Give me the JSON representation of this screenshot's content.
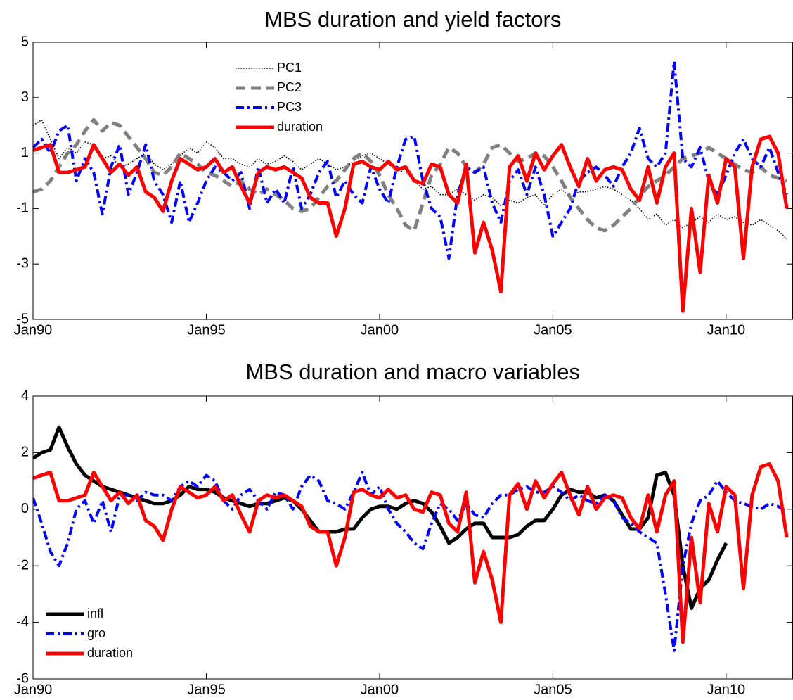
{
  "chart_data": [
    {
      "type": "line",
      "title": "MBS duration and yield factors",
      "legend": "upper left",
      "x": [
        1990,
        1990.25,
        1990.5,
        1990.75,
        1991,
        1991.25,
        1991.5,
        1991.75,
        1992,
        1992.25,
        1992.5,
        1992.75,
        1993,
        1993.25,
        1993.5,
        1993.75,
        1994,
        1994.25,
        1994.5,
        1994.75,
        1995,
        1995.25,
        1995.5,
        1995.75,
        1996,
        1996.25,
        1996.5,
        1996.75,
        1997,
        1997.25,
        1997.5,
        1997.75,
        1998,
        1998.25,
        1998.5,
        1998.75,
        1999,
        1999.25,
        1999.5,
        1999.75,
        2000,
        2000.25,
        2000.5,
        2000.75,
        2001,
        2001.25,
        2001.5,
        2001.75,
        2002,
        2002.25,
        2002.5,
        2002.75,
        2003,
        2003.25,
        2003.5,
        2003.75,
        2004,
        2004.25,
        2004.5,
        2004.75,
        2005,
        2005.25,
        2005.5,
        2005.75,
        2006,
        2006.25,
        2006.5,
        2006.75,
        2007,
        2007.25,
        2007.5,
        2007.75,
        2008,
        2008.25,
        2008.5,
        2008.75,
        2009,
        2009.25,
        2009.5,
        2009.75,
        2010,
        2010.25,
        2010.5,
        2010.75,
        2011,
        2011.25,
        2011.5,
        2011.75
      ],
      "xlim": [
        1990,
        2011.92
      ],
      "xticks": [
        {
          "value": 1990,
          "label": "Jan90"
        },
        {
          "value": 1995,
          "label": "Jan95"
        },
        {
          "value": 2000,
          "label": "Jan00"
        },
        {
          "value": 2005,
          "label": "Jan05"
        },
        {
          "value": 2010,
          "label": "Jan10"
        }
      ],
      "ylim": [
        -5,
        5
      ],
      "yticks": [
        -5,
        -3,
        -1,
        1,
        3,
        5
      ],
      "series": [
        {
          "name": "PC1",
          "color": "#000000",
          "linestyle": "dotted",
          "values": [
            2.0,
            2.2,
            1.5,
            0.8,
            1.2,
            1.0,
            1.4,
            1.3,
            0.8,
            0.9,
            0.5,
            0.6,
            0.8,
            1.0,
            0.6,
            0.4,
            0.6,
            0.9,
            1.2,
            1.0,
            1.4,
            1.2,
            0.8,
            0.8,
            0.6,
            0.5,
            0.8,
            0.6,
            0.7,
            0.9,
            0.7,
            0.4,
            0.6,
            0.8,
            0.6,
            0.4,
            0.5,
            0.7,
            0.9,
            1.0,
            0.8,
            0.6,
            0.4,
            0.3,
            0.0,
            -0.3,
            -0.2,
            -0.5,
            -0.5,
            -0.3,
            -0.5,
            -0.7,
            -0.5,
            -0.6,
            -0.9,
            -0.7,
            -0.8,
            -0.6,
            -0.5,
            -0.9,
            -0.5,
            -0.3,
            -0.6,
            -0.4,
            -0.4,
            -0.3,
            -0.2,
            -0.3,
            -0.5,
            -0.7,
            -1.0,
            -1.4,
            -1.2,
            -1.6,
            -1.4,
            -1.7,
            -1.5,
            -1.3,
            -1.5,
            -1.2,
            -1.4,
            -1.3,
            -1.5,
            -1.6,
            -1.4,
            -1.6,
            -1.8,
            -2.1
          ]
        },
        {
          "name": "PC2",
          "color": "#808080",
          "linestyle": "dashed",
          "values": [
            -0.4,
            -0.3,
            0.0,
            0.5,
            1.0,
            1.3,
            1.8,
            2.2,
            1.8,
            2.1,
            2.0,
            1.6,
            1.2,
            0.8,
            0.3,
            0.2,
            0.5,
            1.0,
            0.8,
            0.6,
            0.3,
            0.2,
            0.0,
            -0.2,
            0.0,
            -0.3,
            -0.5,
            -0.3,
            -0.5,
            -0.7,
            -1.0,
            -1.1,
            -1.0,
            -0.6,
            -0.2,
            0.0,
            0.4,
            0.8,
            1.0,
            0.7,
            0.2,
            -0.5,
            -1.0,
            -1.6,
            -1.8,
            -0.8,
            0.2,
            0.6,
            1.2,
            1.0,
            0.5,
            0.3,
            0.6,
            1.2,
            1.3,
            1.0,
            0.7,
            0.8,
            1.0,
            0.9,
            0.5,
            0.0,
            -0.6,
            -1.0,
            -1.4,
            -1.7,
            -1.8,
            -1.6,
            -1.3,
            -1.0,
            -0.6,
            -0.2,
            0.0,
            0.2,
            0.5,
            0.8,
            0.9,
            1.0,
            1.2,
            1.0,
            0.8,
            0.6,
            0.4,
            0.3,
            0.5,
            0.2,
            0.1,
            0.0
          ]
        },
        {
          "name": "PC3",
          "color": "#0000ff",
          "linestyle": "dashdot",
          "values": [
            1.2,
            1.5,
            1.0,
            1.8,
            2.0,
            0.0,
            0.8,
            0.3,
            -1.2,
            0.5,
            1.3,
            -0.5,
            0.3,
            1.3,
            0.0,
            -0.5,
            -1.5,
            0.0,
            -1.5,
            -0.8,
            0.0,
            0.5,
            0.3,
            0.0,
            0.3,
            -1.0,
            0.5,
            -0.8,
            -0.3,
            -0.8,
            0.5,
            -1.0,
            -0.5,
            0.3,
            0.7,
            -0.6,
            0.0,
            -0.5,
            -0.8,
            0.5,
            -0.3,
            -0.8,
            0.5,
            1.5,
            1.6,
            0.0,
            -1.0,
            -1.3,
            -2.8,
            -0.5,
            0.5,
            0.3,
            0.5,
            -0.8,
            -1.5,
            0.0,
            0.4,
            -0.5,
            0.5,
            -0.5,
            -2.0,
            -1.5,
            -1.0,
            0.0,
            0.3,
            0.5,
            0.2,
            -0.2,
            0.5,
            1.0,
            1.9,
            0.8,
            0.5,
            1.0,
            4.3,
            0.8,
            0.5,
            1.2,
            0.0,
            -0.5,
            0.2,
            1.0,
            1.5,
            0.8,
            0.5,
            1.2,
            0.3,
            -0.5
          ]
        },
        {
          "name": "duration",
          "color": "#ff0000",
          "linestyle": "solid",
          "values": [
            1.1,
            1.2,
            1.3,
            0.3,
            0.3,
            0.4,
            0.5,
            1.3,
            0.8,
            0.3,
            0.6,
            0.2,
            0.5,
            -0.4,
            -0.6,
            -1.1,
            0.0,
            0.8,
            0.6,
            0.4,
            0.5,
            0.8,
            0.3,
            0.5,
            -0.2,
            -0.8,
            0.3,
            0.5,
            0.4,
            0.5,
            0.3,
            0.1,
            -0.6,
            -0.8,
            -0.8,
            -2.0,
            -1.0,
            0.6,
            0.7,
            0.5,
            0.4,
            0.7,
            0.4,
            0.5,
            0.0,
            -0.1,
            0.6,
            0.5,
            -0.5,
            -0.8,
            0.6,
            -2.6,
            -1.5,
            -2.5,
            -4.0,
            0.5,
            0.9,
            0.0,
            1.0,
            0.4,
            0.9,
            1.3,
            0.5,
            -0.2,
            0.8,
            0.0,
            0.4,
            0.5,
            0.4,
            -0.3,
            -0.7,
            0.5,
            -0.8,
            0.5,
            1.0,
            -4.7,
            -1.0,
            -3.3,
            0.2,
            -0.8,
            0.8,
            0.5,
            -2.8,
            0.5,
            1.5,
            1.6,
            1.0,
            -1.0
          ]
        }
      ]
    },
    {
      "type": "line",
      "title": "MBS duration and macro variables",
      "legend": "lower left",
      "x": [
        1990,
        1990.25,
        1990.5,
        1990.75,
        1991,
        1991.25,
        1991.5,
        1991.75,
        1992,
        1992.25,
        1992.5,
        1992.75,
        1993,
        1993.25,
        1993.5,
        1993.75,
        1994,
        1994.25,
        1994.5,
        1994.75,
        1995,
        1995.25,
        1995.5,
        1995.75,
        1996,
        1996.25,
        1996.5,
        1996.75,
        1997,
        1997.25,
        1997.5,
        1997.75,
        1998,
        1998.25,
        1998.5,
        1998.75,
        1999,
        1999.25,
        1999.5,
        1999.75,
        2000,
        2000.25,
        2000.5,
        2000.75,
        2001,
        2001.25,
        2001.5,
        2001.75,
        2002,
        2002.25,
        2002.5,
        2002.75,
        2003,
        2003.25,
        2003.5,
        2003.75,
        2004,
        2004.25,
        2004.5,
        2004.75,
        2005,
        2005.25,
        2005.5,
        2005.75,
        2006,
        2006.25,
        2006.5,
        2006.75,
        2007,
        2007.25,
        2007.5,
        2007.75,
        2008,
        2008.25,
        2008.5,
        2008.75,
        2009,
        2009.25,
        2009.5,
        2009.75,
        2010,
        2010.25,
        2010.5,
        2010.75,
        2011,
        2011.25,
        2011.5,
        2011.75
      ],
      "xlim": [
        1990,
        2011.92
      ],
      "xticks": [
        {
          "value": 1990,
          "label": "Jan90"
        },
        {
          "value": 1995,
          "label": "Jan95"
        },
        {
          "value": 2000,
          "label": "Jan00"
        },
        {
          "value": 2005,
          "label": "Jan05"
        },
        {
          "value": 2010,
          "label": "Jan10"
        }
      ],
      "ylim": [
        -6,
        4
      ],
      "yticks": [
        -6,
        -4,
        -2,
        0,
        2,
        4
      ],
      "series": [
        {
          "name": "infl",
          "color": "#000000",
          "linestyle": "solid",
          "values": [
            1.8,
            2.0,
            2.1,
            2.9,
            2.2,
            1.6,
            1.2,
            1.0,
            0.8,
            0.7,
            0.6,
            0.5,
            0.4,
            0.3,
            0.2,
            0.2,
            0.3,
            0.5,
            0.8,
            0.7,
            0.7,
            0.6,
            0.4,
            0.3,
            0.2,
            0.1,
            0.2,
            0.2,
            0.3,
            0.4,
            0.3,
            0.0,
            -0.4,
            -0.8,
            -0.8,
            -0.8,
            -0.7,
            -0.7,
            -0.3,
            0.0,
            0.1,
            0.1,
            0.0,
            0.2,
            0.3,
            0.2,
            -0.1,
            -0.6,
            -1.2,
            -1.0,
            -0.7,
            -0.5,
            -0.5,
            -1.0,
            -1.0,
            -1.0,
            -0.9,
            -0.6,
            -0.4,
            -0.4,
            0.0,
            0.5,
            0.7,
            0.6,
            0.6,
            0.4,
            0.5,
            0.3,
            -0.2,
            -0.7,
            -0.7,
            -0.3,
            1.2,
            1.3,
            0.5,
            -2.0,
            -3.5,
            -2.8,
            -2.5,
            -1.8,
            -1.2,
            null,
            null,
            null,
            null,
            null,
            null,
            null
          ]
        },
        {
          "name": "gro",
          "color": "#0000ff",
          "linestyle": "dashdot",
          "values": [
            0.4,
            -0.5,
            -1.5,
            -2.0,
            -1.2,
            0.0,
            0.3,
            -0.5,
            0.3,
            -0.8,
            0.5,
            0.5,
            0.3,
            0.6,
            0.5,
            0.5,
            0.3,
            0.8,
            1.0,
            0.8,
            1.2,
            1.0,
            0.3,
            0.0,
            0.5,
            0.7,
            0.3,
            0.0,
            0.6,
            0.5,
            0.0,
            0.8,
            1.2,
            1.0,
            0.3,
            0.2,
            0.0,
            0.6,
            1.3,
            0.5,
            0.8,
            0.0,
            -0.5,
            -0.8,
            -1.2,
            -1.4,
            -0.5,
            0.2,
            0.0,
            -0.4,
            0.2,
            -0.2,
            -0.3,
            0.2,
            0.5,
            0.5,
            0.7,
            0.8,
            0.6,
            0.6,
            0.8,
            0.6,
            0.3,
            0.5,
            0.3,
            0.2,
            0.5,
            0.3,
            -0.3,
            -0.5,
            -0.8,
            -1.0,
            -1.2,
            -3.0,
            -5.0,
            -2.0,
            -0.5,
            0.3,
            0.5,
            1.0,
            0.6,
            0.3,
            0.2,
            0.1,
            0.0,
            0.2,
            0.1,
            -0.1
          ]
        },
        {
          "name": "duration",
          "color": "#ff0000",
          "linestyle": "solid",
          "values": [
            1.1,
            1.2,
            1.3,
            0.3,
            0.3,
            0.4,
            0.5,
            1.3,
            0.8,
            0.3,
            0.6,
            0.2,
            0.5,
            -0.4,
            -0.6,
            -1.1,
            0.0,
            0.8,
            0.6,
            0.4,
            0.5,
            0.8,
            0.3,
            0.5,
            -0.2,
            -0.8,
            0.3,
            0.5,
            0.4,
            0.5,
            0.3,
            0.1,
            -0.6,
            -0.8,
            -0.8,
            -2.0,
            -1.0,
            0.6,
            0.7,
            0.5,
            0.4,
            0.7,
            0.4,
            0.5,
            0.0,
            -0.1,
            0.6,
            0.5,
            -0.5,
            -0.8,
            0.6,
            -2.6,
            -1.5,
            -2.5,
            -4.0,
            0.5,
            0.9,
            0.0,
            1.0,
            0.4,
            0.9,
            1.3,
            0.5,
            -0.2,
            0.8,
            0.0,
            0.4,
            0.5,
            0.4,
            -0.3,
            -0.7,
            0.5,
            -0.8,
            0.5,
            1.0,
            -4.7,
            -1.0,
            -3.3,
            0.2,
            -0.8,
            0.8,
            0.5,
            -2.8,
            0.5,
            1.5,
            1.6,
            1.0,
            -1.0
          ]
        }
      ]
    }
  ]
}
